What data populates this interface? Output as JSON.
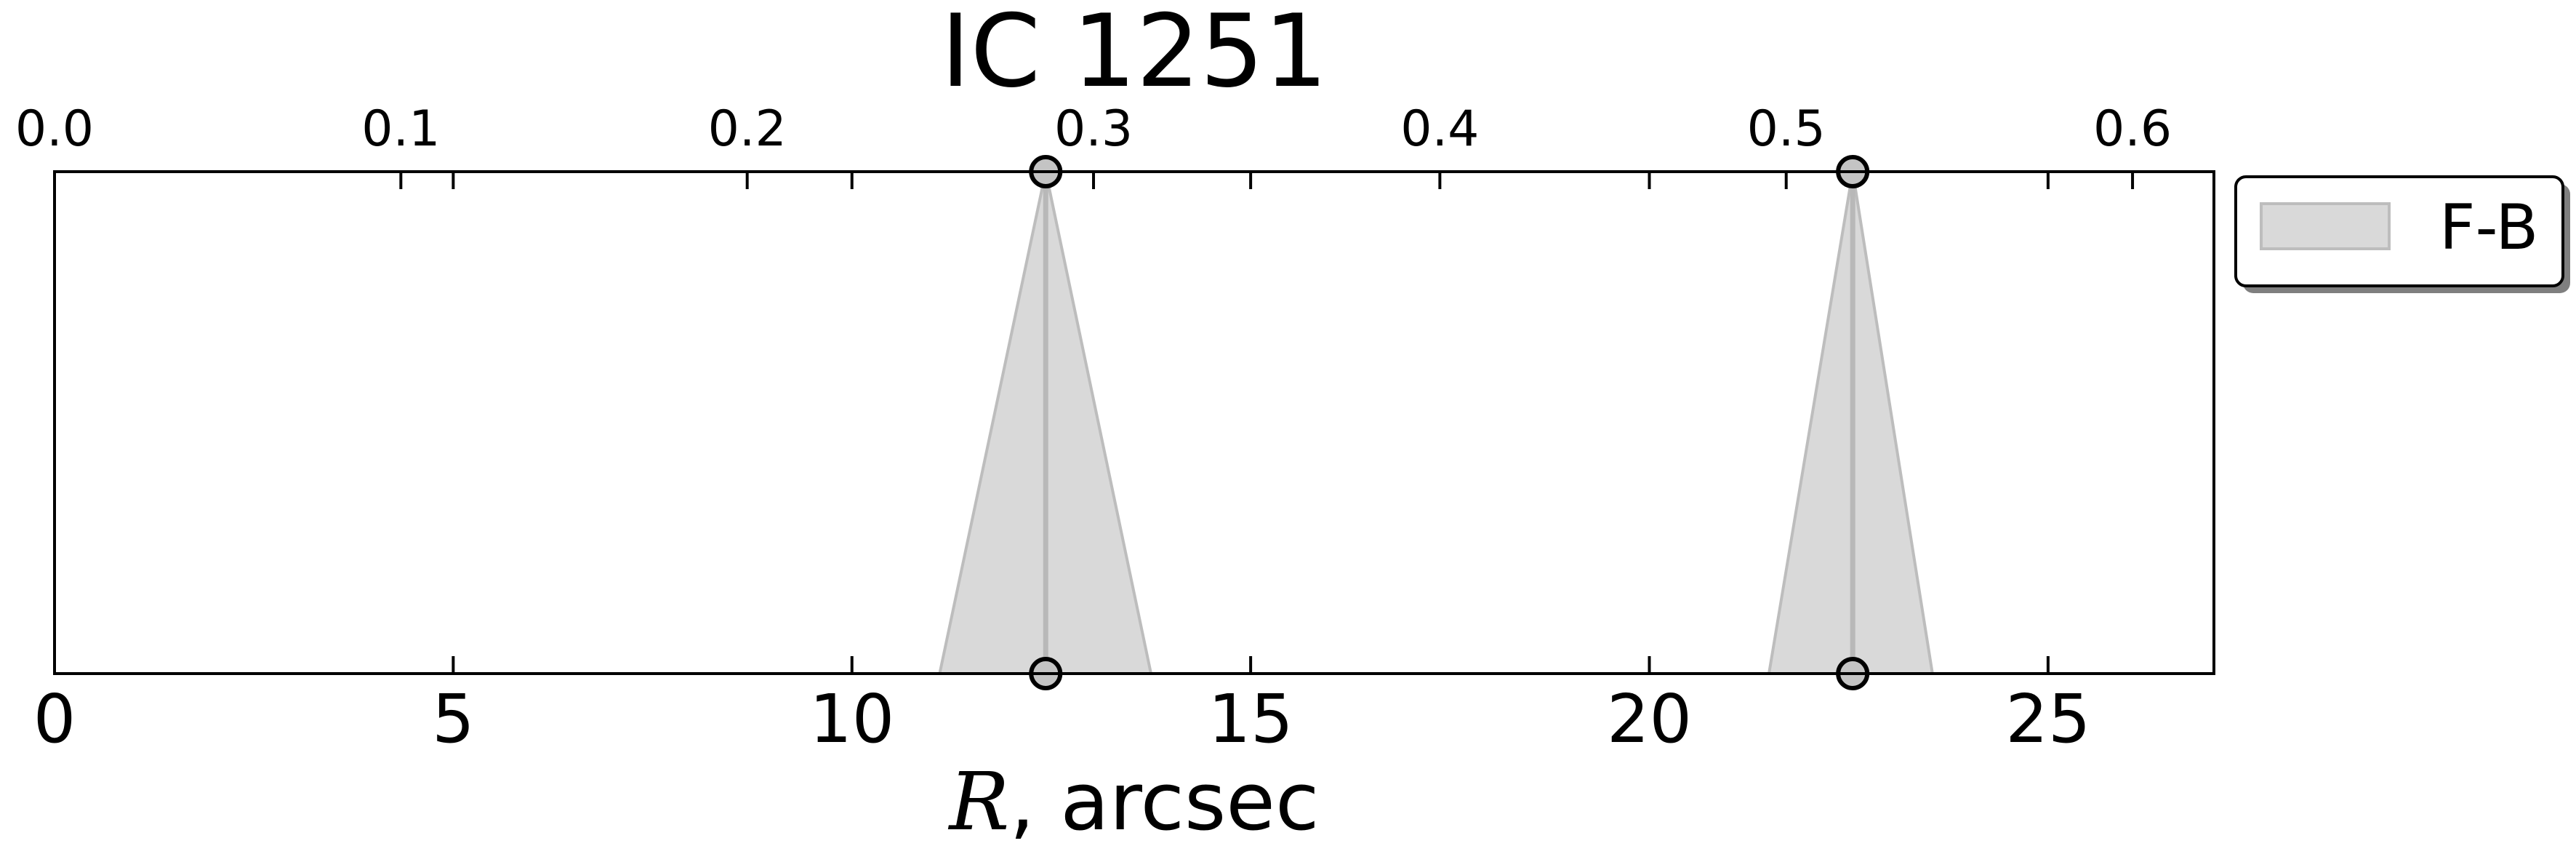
{
  "chart_data": {
    "type": "area",
    "title": "IC 1251",
    "xlabel_symbol": "R",
    "xlabel_rest": ", arcsec",
    "xlim": [
      0,
      27.08
    ],
    "xticks": [
      0,
      5,
      10,
      15,
      20,
      25
    ],
    "xtick_labels": [
      "0",
      "5",
      "10",
      "15",
      "20",
      "25"
    ],
    "secondary_xlim": [
      0,
      0.6235
    ],
    "secondary_xticks": [
      0.0,
      0.1,
      0.2,
      0.3,
      0.4,
      0.5,
      0.6
    ],
    "secondary_xtick_labels": [
      "0.0",
      "0.1",
      "0.2",
      "0.3",
      "0.4",
      "0.5",
      "0.6"
    ],
    "ylim": [
      0,
      1
    ],
    "grid": false,
    "legend_placement": "upper right, outside plot",
    "series": [
      {
        "name": "F-B",
        "color": "#d9d9d9",
        "edge_color": "#bdbdbd",
        "features": [
          {
            "center": 12.43,
            "low": 11.1,
            "high": 13.75
          },
          {
            "center": 22.55,
            "low": 21.5,
            "high": 23.55
          }
        ]
      }
    ]
  }
}
